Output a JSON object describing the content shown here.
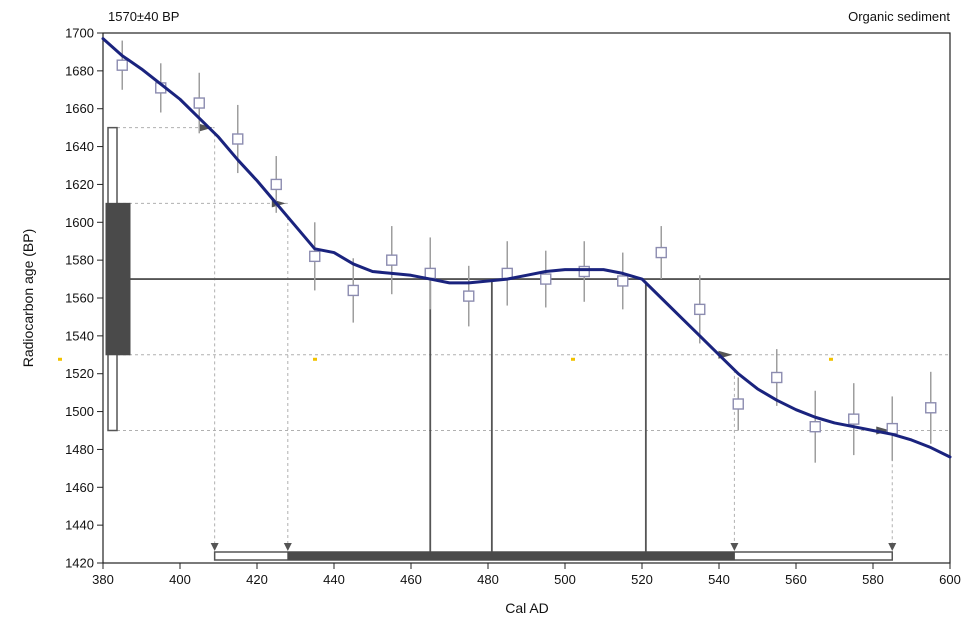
{
  "chart_data": {
    "type": "line",
    "title_left": "1570±40 BP",
    "title_right": "Organic sediment",
    "xlabel": "Cal AD",
    "ylabel": "Radiocarbon age (BP)",
    "xlim": [
      380,
      600
    ],
    "ylim": [
      1420,
      1700
    ],
    "x_ticks": [
      380,
      400,
      420,
      440,
      460,
      480,
      500,
      520,
      540,
      560,
      580,
      600
    ],
    "y_ticks": [
      1420,
      1440,
      1460,
      1480,
      1500,
      1520,
      1540,
      1560,
      1580,
      1600,
      1620,
      1640,
      1660,
      1680,
      1700
    ],
    "measured_age": 1570,
    "measured_error": 40,
    "sigma1_range": [
      1530,
      1610
    ],
    "sigma2_range": [
      1490,
      1650
    ],
    "curve": {
      "x": [
        380,
        385,
        390,
        395,
        400,
        405,
        410,
        415,
        420,
        425,
        430,
        435,
        440,
        445,
        450,
        455,
        460,
        465,
        470,
        475,
        480,
        485,
        490,
        495,
        500,
        505,
        510,
        515,
        520,
        525,
        530,
        535,
        540,
        545,
        550,
        555,
        560,
        565,
        570,
        575,
        580,
        585,
        590,
        595,
        600
      ],
      "y": [
        1697,
        1688,
        1681,
        1673,
        1665,
        1655,
        1645,
        1633,
        1622,
        1610,
        1598,
        1586,
        1584,
        1578,
        1574,
        1573,
        1572,
        1570,
        1568,
        1568,
        1569,
        1570,
        1572,
        1574,
        1575,
        1575,
        1575,
        1573,
        1570,
        1560,
        1550,
        1540,
        1530,
        1520,
        1512,
        1506,
        1501,
        1497,
        1494,
        1492,
        1490,
        1488,
        1485,
        1481,
        1476
      ]
    },
    "data_points": [
      {
        "x": 385,
        "y": 1683,
        "err": 13
      },
      {
        "x": 395,
        "y": 1671,
        "err": 13
      },
      {
        "x": 405,
        "y": 1663,
        "err": 16
      },
      {
        "x": 415,
        "y": 1644,
        "err": 18
      },
      {
        "x": 425,
        "y": 1620,
        "err": 15
      },
      {
        "x": 435,
        "y": 1582,
        "err": 18
      },
      {
        "x": 445,
        "y": 1564,
        "err": 17
      },
      {
        "x": 455,
        "y": 1580,
        "err": 18
      },
      {
        "x": 465,
        "y": 1573,
        "err": 19
      },
      {
        "x": 475,
        "y": 1561,
        "err": 16
      },
      {
        "x": 485,
        "y": 1573,
        "err": 17
      },
      {
        "x": 495,
        "y": 1570,
        "err": 15
      },
      {
        "x": 505,
        "y": 1574,
        "err": 16
      },
      {
        "x": 515,
        "y": 1569,
        "err": 15
      },
      {
        "x": 525,
        "y": 1584,
        "err": 14
      },
      {
        "x": 535,
        "y": 1554,
        "err": 18
      },
      {
        "x": 545,
        "y": 1504,
        "err": 14
      },
      {
        "x": 555,
        "y": 1518,
        "err": 15
      },
      {
        "x": 565,
        "y": 1492,
        "err": 19
      },
      {
        "x": 575,
        "y": 1496,
        "err": 19
      },
      {
        "x": 585,
        "y": 1491,
        "err": 17
      },
      {
        "x": 595,
        "y": 1502,
        "err": 19
      }
    ],
    "intercepts_1sigma": [
      428,
      465,
      481,
      521,
      544
    ],
    "intercepts_2sigma": [
      409,
      585
    ],
    "cal_range_1sigma": [
      428,
      544
    ],
    "cal_range_2sigma": [
      409,
      585
    ],
    "colors": {
      "curve": "#1a237e",
      "markers": "#8c8cb0",
      "errorbars": "#9e9e9e",
      "bars": "#4a4a4a",
      "guides": "#b0b0b0",
      "dots": "#f2c200"
    }
  }
}
